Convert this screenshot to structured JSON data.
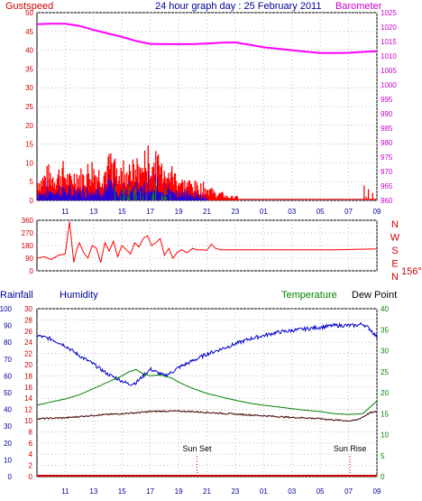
{
  "header": {
    "left": "Gustspeed",
    "center": "24 hour graph day : 25 February 2011",
    "right": "Barometer"
  },
  "panel3_labels": {
    "rainfall": "Rainfall",
    "humidity": "Humidity",
    "temperature": "Temperature",
    "dewpoint": "Dew Point"
  },
  "annotations": {
    "sunset": "Sun Set",
    "sunrise": "Sun Rise",
    "wind_now": "156°"
  },
  "colors": {
    "gust": "#ff0000",
    "wind": "#0000ff",
    "calm": "#00a000",
    "barometer": "#ff00ff",
    "humidity": "#0000cc",
    "temperature": "#008000",
    "dewpoint": "#400000",
    "rain": "#cc0000",
    "axis_left": "#cc0000",
    "axis_right": "#cc00cc"
  },
  "chart_data": [
    {
      "type": "line",
      "name": "gust-barometer",
      "x_ticks": [
        "11",
        "13",
        "15",
        "17",
        "19",
        "21",
        "23",
        "01",
        "03",
        "05",
        "07",
        "09"
      ],
      "y_left_ticks": [
        "0",
        "5",
        "10",
        "15",
        "20",
        "25",
        "30",
        "35",
        "40",
        "45",
        "50"
      ],
      "y_right_ticks": [
        "960",
        "965",
        "970",
        "975",
        "980",
        "985",
        "990",
        "995",
        "1000",
        "1005",
        "1010",
        "1015",
        "1020",
        "1025"
      ],
      "ylim_left": [
        0,
        50
      ],
      "ylim_right": [
        960,
        1025
      ],
      "series": [
        {
          "name": "Gustspeed",
          "hours": [
            9.3,
            9.8,
            10.3,
            10.8,
            11.3,
            11.8,
            12.3,
            12.8,
            13.3,
            13.8,
            14.3,
            14.8,
            15.3,
            15.8,
            16.3,
            16.8,
            17.3,
            17.8,
            18.3,
            18.8,
            19.3,
            19.8,
            20.3,
            20.8,
            21.3,
            21.6,
            22.0,
            22.5,
            23.0,
            23.5,
            24.0,
            25.0,
            26.0,
            27.0,
            28.0,
            29.0,
            30.0,
            31.0,
            31.8,
            32.2,
            32.6,
            33.0
          ],
          "values": [
            6,
            8,
            7,
            9,
            6,
            8,
            7,
            10,
            8,
            9,
            11,
            8,
            10,
            9,
            10,
            12,
            11,
            10,
            9,
            7,
            5,
            5,
            4,
            4,
            3,
            2,
            2,
            1,
            1,
            1,
            1,
            1,
            1,
            1,
            1,
            1,
            1,
            1,
            1,
            4,
            3,
            2
          ]
        },
        {
          "name": "Barometer",
          "hours": [
            9,
            10,
            11,
            12,
            13,
            14,
            15,
            16,
            17,
            18,
            19,
            20,
            21,
            22,
            23,
            24,
            25,
            26,
            27,
            28,
            29,
            30,
            31,
            32,
            33
          ],
          "values": [
            1021,
            1021.2,
            1021.2,
            1020.4,
            1019,
            1017.8,
            1016.6,
            1015.2,
            1014.2,
            1014.1,
            1014.1,
            1014.1,
            1014.3,
            1014.6,
            1014.7,
            1013.9,
            1013,
            1012.5,
            1012,
            1011.5,
            1011,
            1011,
            1011.1,
            1011.4,
            1011.6
          ]
        }
      ]
    },
    {
      "type": "line",
      "name": "wind-direction",
      "y_left_ticks": [
        "360",
        "270",
        "180",
        "90",
        "0"
      ],
      "y_right_ticks": [
        "N",
        "W",
        "S",
        "E",
        "N"
      ],
      "ylim": [
        0,
        360
      ],
      "series": [
        {
          "name": "Direction",
          "hours": [
            9,
            9.5,
            10,
            10.5,
            11,
            11.3,
            11.6,
            11.8,
            12,
            12.3,
            12.6,
            12.9,
            13.2,
            13.5,
            13.8,
            14.1,
            14.4,
            14.7,
            15,
            15.3,
            15.6,
            15.9,
            16.2,
            16.5,
            16.8,
            17.1,
            17.4,
            17.7,
            18,
            18.3,
            18.6,
            18.9,
            19.2,
            19.6,
            20,
            20.3,
            20.6,
            21,
            21.3,
            21.6,
            22,
            26,
            30,
            33
          ],
          "values": [
            90,
            100,
            80,
            110,
            120,
            350,
            60,
            150,
            200,
            130,
            90,
            180,
            160,
            60,
            200,
            140,
            210,
            100,
            180,
            150,
            120,
            200,
            170,
            230,
            250,
            180,
            200,
            230,
            110,
            160,
            90,
            130,
            150,
            130,
            160,
            150,
            150,
            145,
            190,
            160,
            150,
            150,
            150,
            156
          ]
        }
      ]
    },
    {
      "type": "line",
      "name": "humidity-temperature",
      "y_left1_ticks": [
        "0",
        "10",
        "20",
        "30",
        "40",
        "50",
        "60",
        "70",
        "80",
        "90",
        "100"
      ],
      "y_left2_ticks": [
        "0",
        "2",
        "4",
        "6",
        "8",
        "10",
        "12",
        "14",
        "16",
        "18",
        "20",
        "22",
        "24",
        "26",
        "28",
        "30"
      ],
      "y_right_ticks": [
        "0",
        "5",
        "10",
        "15",
        "20",
        "25",
        "30",
        "35",
        "40"
      ],
      "ylim_humidity": [
        0,
        100
      ],
      "ylim_temperature": [
        0,
        40
      ],
      "series": [
        {
          "name": "Humidity",
          "hours": [
            9,
            10,
            11,
            12,
            13,
            14,
            15,
            15.5,
            16,
            16.5,
            17,
            17.5,
            18,
            18.5,
            19,
            20,
            21,
            22,
            23,
            24,
            25,
            26,
            27,
            28,
            29,
            30,
            31,
            31.5,
            32,
            32.5,
            33
          ],
          "values": [
            84,
            82,
            78,
            72,
            67,
            61,
            57,
            55,
            56,
            60,
            64,
            62,
            60,
            62,
            65,
            69,
            73,
            76,
            79,
            82,
            84,
            86,
            87,
            88,
            89,
            90,
            90,
            90,
            91,
            88,
            83
          ]
        },
        {
          "name": "Temperature",
          "hours": [
            9,
            10,
            11,
            12,
            13,
            14,
            15,
            15.5,
            16,
            16.5,
            17,
            17.5,
            18,
            18.5,
            19,
            20,
            21,
            22,
            23,
            24,
            25,
            26,
            27,
            28,
            29,
            30,
            31,
            31.5,
            32,
            32.5,
            33
          ],
          "values": [
            17,
            17.8,
            18.5,
            19.5,
            21,
            22.5,
            24,
            25,
            25.5,
            24.5,
            24,
            24.2,
            24,
            23.5,
            22.5,
            21,
            19.8,
            19,
            18.2,
            17.5,
            17,
            16.6,
            16.2,
            15.8,
            15.5,
            15,
            14.8,
            14.9,
            15,
            16.5,
            18
          ]
        },
        {
          "name": "Dew Point",
          "hours": [
            9,
            10,
            11,
            12,
            13,
            14,
            15,
            16,
            17,
            18,
            19,
            20,
            21,
            22,
            23,
            24,
            25,
            26,
            27,
            28,
            29,
            30,
            31,
            31.5,
            32,
            32.5,
            33
          ],
          "values": [
            13.8,
            13.9,
            14,
            14.3,
            14.6,
            14.8,
            15,
            15.2,
            15.5,
            15.6,
            15.6,
            15.5,
            15.3,
            15.1,
            14.9,
            14.7,
            14.5,
            14.3,
            14.1,
            14,
            13.8,
            13.5,
            13.3,
            13.4,
            14.2,
            15.2,
            15.5
          ]
        },
        {
          "name": "Rainfall",
          "hours": [
            9,
            33
          ],
          "values": [
            0,
            0
          ]
        }
      ],
      "sunset_hour": 20.3,
      "sunrise_hour": 31.1
    }
  ]
}
